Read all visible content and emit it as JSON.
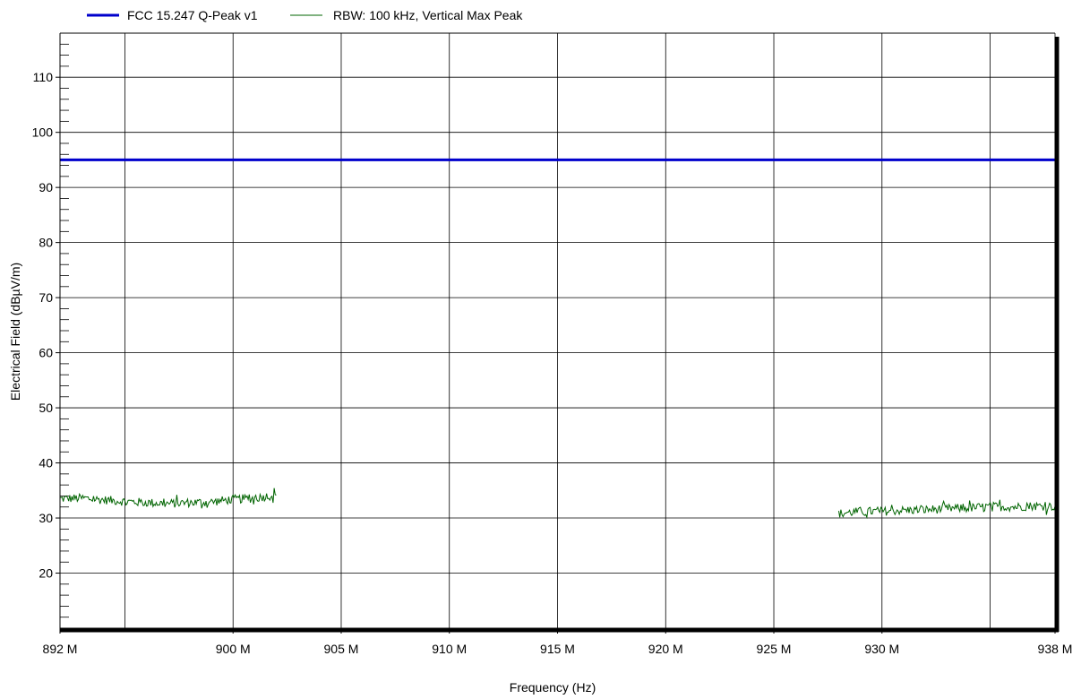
{
  "chart_data": {
    "type": "line",
    "title": "",
    "xlabel": "Frequency (Hz)",
    "ylabel": "Electrical Field (dBµV/m)",
    "xlim": [
      892,
      938
    ],
    "ylim": [
      10,
      118
    ],
    "x_unit": "MHz",
    "grid": true,
    "legend_position": "top-left",
    "x_ticks": [
      {
        "value": 892,
        "label": "892 M"
      },
      {
        "value": 900,
        "label": "900 M"
      },
      {
        "value": 905,
        "label": "905 M"
      },
      {
        "value": 910,
        "label": "910 M"
      },
      {
        "value": 915,
        "label": "915 M"
      },
      {
        "value": 920,
        "label": "920 M"
      },
      {
        "value": 925,
        "label": "925 M"
      },
      {
        "value": 930,
        "label": "930 M"
      },
      {
        "value": 938,
        "label": "938 M"
      }
    ],
    "x_minor_gridlines": [
      895,
      935
    ],
    "y_ticks": [
      {
        "value": 20,
        "label": "20"
      },
      {
        "value": 30,
        "label": "30"
      },
      {
        "value": 40,
        "label": "40"
      },
      {
        "value": 50,
        "label": "50"
      },
      {
        "value": 60,
        "label": "60"
      },
      {
        "value": 70,
        "label": "70"
      },
      {
        "value": 80,
        "label": "80"
      },
      {
        "value": 90,
        "label": "90"
      },
      {
        "value": 100,
        "label": "100"
      },
      {
        "value": 110,
        "label": "110"
      }
    ],
    "series": [
      {
        "name": "FCC 15.247 Q-Peak v1",
        "color": "#0000cc",
        "style": "thick",
        "points": [
          [
            892,
            95
          ],
          [
            938,
            95
          ]
        ]
      },
      {
        "name": "RBW: 100 kHz, Vertical Max Peak",
        "color": "#006400",
        "style": "thin-noisy",
        "segments": [
          [
            [
              892.0,
              33.5
            ],
            [
              893.0,
              33.6
            ],
            [
              894.0,
              33.3
            ],
            [
              895.0,
              33.0
            ],
            [
              896.0,
              32.8
            ],
            [
              897.0,
              32.6
            ],
            [
              898.0,
              32.8
            ],
            [
              899.0,
              32.9
            ],
            [
              900.0,
              33.4
            ],
            [
              901.0,
              33.6
            ],
            [
              902.0,
              34.2
            ]
          ],
          [
            [
              928.0,
              30.8
            ],
            [
              929.0,
              31.2
            ],
            [
              930.0,
              31.2
            ],
            [
              931.0,
              31.4
            ],
            [
              932.0,
              31.5
            ],
            [
              933.0,
              31.7
            ],
            [
              934.0,
              31.8
            ],
            [
              935.0,
              32.1
            ],
            [
              936.0,
              32.0
            ],
            [
              937.0,
              32.2
            ],
            [
              938.0,
              32.1
            ]
          ]
        ],
        "noise_amplitude": 1.0
      }
    ]
  },
  "colors": {
    "grid": "#000000",
    "axis": "#000000",
    "limit_line": "#0000cc",
    "trace": "#006400"
  }
}
